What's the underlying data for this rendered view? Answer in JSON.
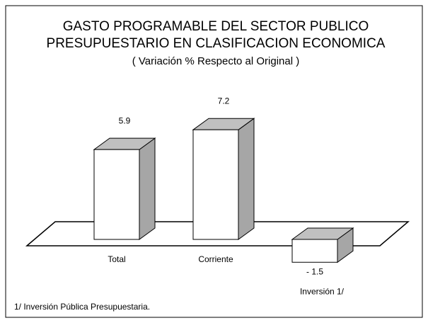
{
  "chart_data": {
    "type": "bar3d",
    "title": [
      "GASTO PROGRAMABLE DEL SECTOR PUBLICO",
      "PRESUPUESTARIO EN CLASIFICACION ECONOMICA"
    ],
    "subtitle": "( Variación % Respecto al Original )",
    "categories": [
      "Total",
      "Corriente",
      "Inversión 1/"
    ],
    "values": [
      5.9,
      7.2,
      -1.5
    ],
    "value_labels": [
      "5.9",
      "7.2",
      "- 1.5"
    ],
    "footnote": "1/ Inversión Pública Presupuestaria."
  }
}
